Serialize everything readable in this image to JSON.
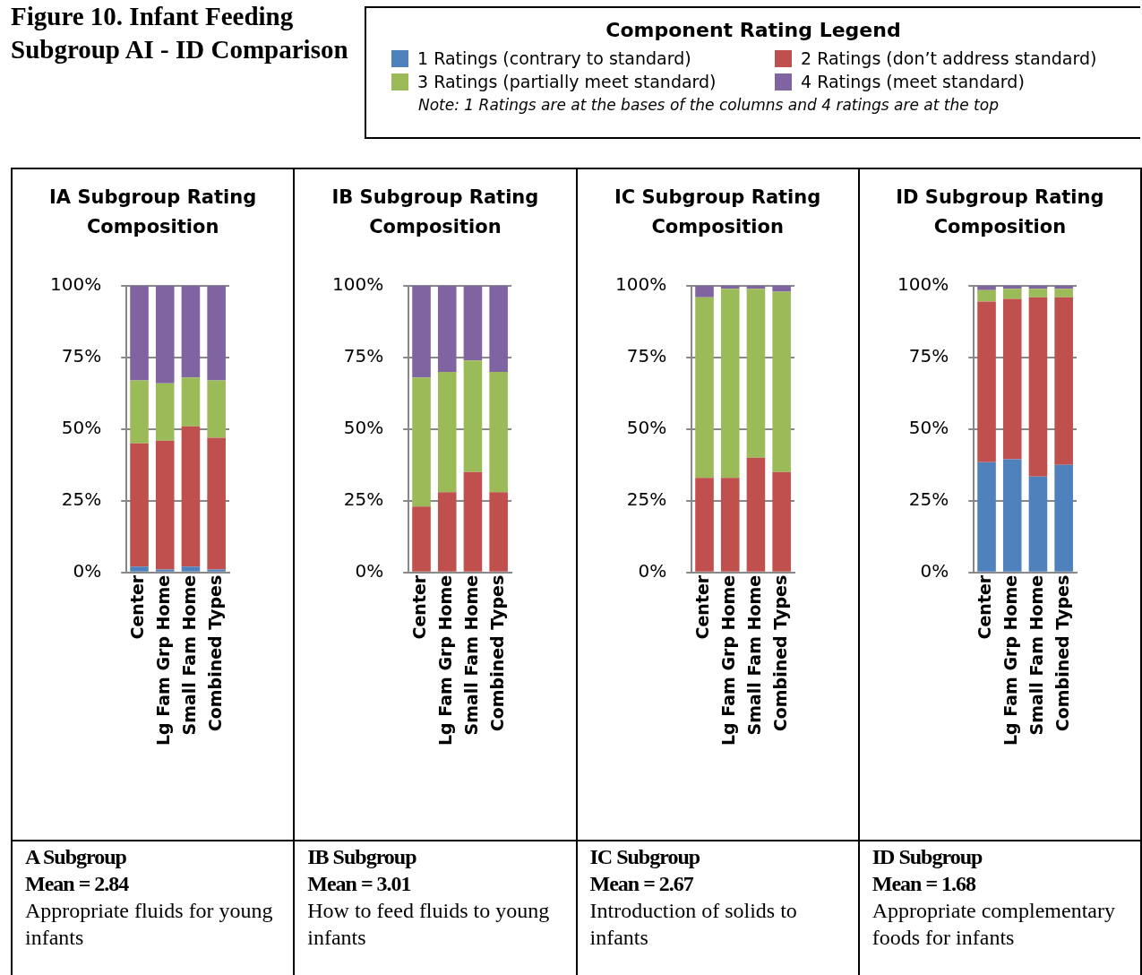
{
  "chart_data": [
    {
      "type": "bar",
      "stacked": true,
      "title": "IA Subgroup Rating Composition",
      "legend_title": "Component Rating Legend",
      "legend": "top right",
      "grid": "y",
      "categories": [
        "Center",
        "Lg Fam Grp Home",
        "Small Fam Home",
        "Combined Types"
      ],
      "ylim": [
        0,
        100
      ],
      "yticks": [
        {
          "value": 0,
          "label": "0%"
        },
        {
          "value": 25,
          "label": "25%"
        },
        {
          "value": 50,
          "label": "50%"
        },
        {
          "value": 75,
          "label": "75%"
        },
        {
          "value": 100,
          "label": "100%"
        }
      ],
      "series": [
        {
          "name": "1 Ratings (contrary to standard)",
          "color": "#4f81bd",
          "values": [
            2,
            1,
            2,
            1
          ]
        },
        {
          "name": "2 Ratings (don’t address standard)",
          "color": "#c0504d",
          "values": [
            43,
            45,
            49,
            46
          ]
        },
        {
          "name": "3 Ratings (partially meet standard)",
          "color": "#9bbb59",
          "values": [
            22,
            20,
            17,
            20
          ]
        },
        {
          "name": "4 Ratings (meet standard)",
          "color": "#8064a2",
          "values": [
            33,
            34,
            32,
            33
          ]
        }
      ],
      "annotations": [
        "Figure 10. Infant Feeding Subgroup AI - ID Comparison",
        "Note: 1 Ratings are at the bases of the columns and 4 ratings are at the top",
        "A Subgroup",
        "Mean = 2.84",
        "Appropriate fluids for young infants"
      ]
    },
    {
      "type": "bar",
      "stacked": true,
      "title": "IB Subgroup Rating Composition",
      "grid": "y",
      "categories": [
        "Center",
        "Lg Fam Grp Home",
        "Small Fam Home",
        "Combined Types"
      ],
      "ylim": [
        0,
        100
      ],
      "yticks": [
        {
          "value": 0,
          "label": "0%"
        },
        {
          "value": 25,
          "label": "25%"
        },
        {
          "value": 50,
          "label": "50%"
        },
        {
          "value": 75,
          "label": "75%"
        },
        {
          "value": 100,
          "label": "100%"
        }
      ],
      "series": [
        {
          "color": "#4f81bd",
          "values": [
            0,
            0,
            0,
            0
          ]
        },
        {
          "color": "#c0504d",
          "values": [
            23,
            28,
            35,
            28
          ]
        },
        {
          "color": "#9bbb59",
          "values": [
            45,
            42,
            39,
            42
          ]
        },
        {
          "color": "#8064a2",
          "values": [
            32,
            30,
            26,
            30
          ]
        }
      ],
      "annotations": [
        "IB Subgroup",
        "Mean = 3.01",
        "How to feed fluids to young infants"
      ]
    },
    {
      "type": "bar",
      "stacked": true,
      "title": "IC Subgroup Rating Composition",
      "grid": "y",
      "categories": [
        "Center",
        "Lg Fam Grp Home",
        "Small Fam Home",
        "Combined Types"
      ],
      "ylim": [
        0,
        100
      ],
      "yticks": [
        {
          "value": 0,
          "label": "0%"
        },
        {
          "value": 25,
          "label": "25%"
        },
        {
          "value": 50,
          "label": "50%"
        },
        {
          "value": 75,
          "label": "75%"
        },
        {
          "value": 100,
          "label": "100%"
        }
      ],
      "series": [
        {
          "color": "#4f81bd",
          "values": [
            0,
            0,
            0,
            0
          ]
        },
        {
          "color": "#c0504d",
          "values": [
            33,
            33,
            40,
            35
          ]
        },
        {
          "color": "#9bbb59",
          "values": [
            63,
            66,
            59,
            63
          ]
        },
        {
          "color": "#8064a2",
          "values": [
            4,
            1,
            1,
            2
          ]
        }
      ],
      "annotations": [
        "IC Subgroup",
        "Mean = 2.67",
        "Introduction of solids to infants"
      ]
    },
    {
      "type": "bar",
      "stacked": true,
      "title": "ID Subgroup Rating Composition",
      "grid": "y",
      "categories": [
        "Center",
        "Lg Fam Grp Home",
        "Small Fam Home",
        "Combined Types"
      ],
      "ylim": [
        0,
        100
      ],
      "yticks": [
        {
          "value": 0,
          "label": "0%"
        },
        {
          "value": 25,
          "label": "25%"
        },
        {
          "value": 50,
          "label": "50%"
        },
        {
          "value": 75,
          "label": "75%"
        },
        {
          "value": 100,
          "label": "100%"
        }
      ],
      "series": [
        {
          "color": "#4f81bd",
          "values": [
            38.5,
            39.5,
            33.5,
            37.5
          ]
        },
        {
          "color": "#c0504d",
          "values": [
            56,
            56,
            62.5,
            58.5
          ]
        },
        {
          "color": "#9bbb59",
          "values": [
            4,
            3.5,
            3,
            3
          ]
        },
        {
          "color": "#8064a2",
          "values": [
            1.5,
            1,
            1,
            1
          ]
        }
      ],
      "annotations": [
        "ID Subgroup",
        "Mean = 1.68",
        "Appropriate complementary foods for infants"
      ]
    }
  ]
}
